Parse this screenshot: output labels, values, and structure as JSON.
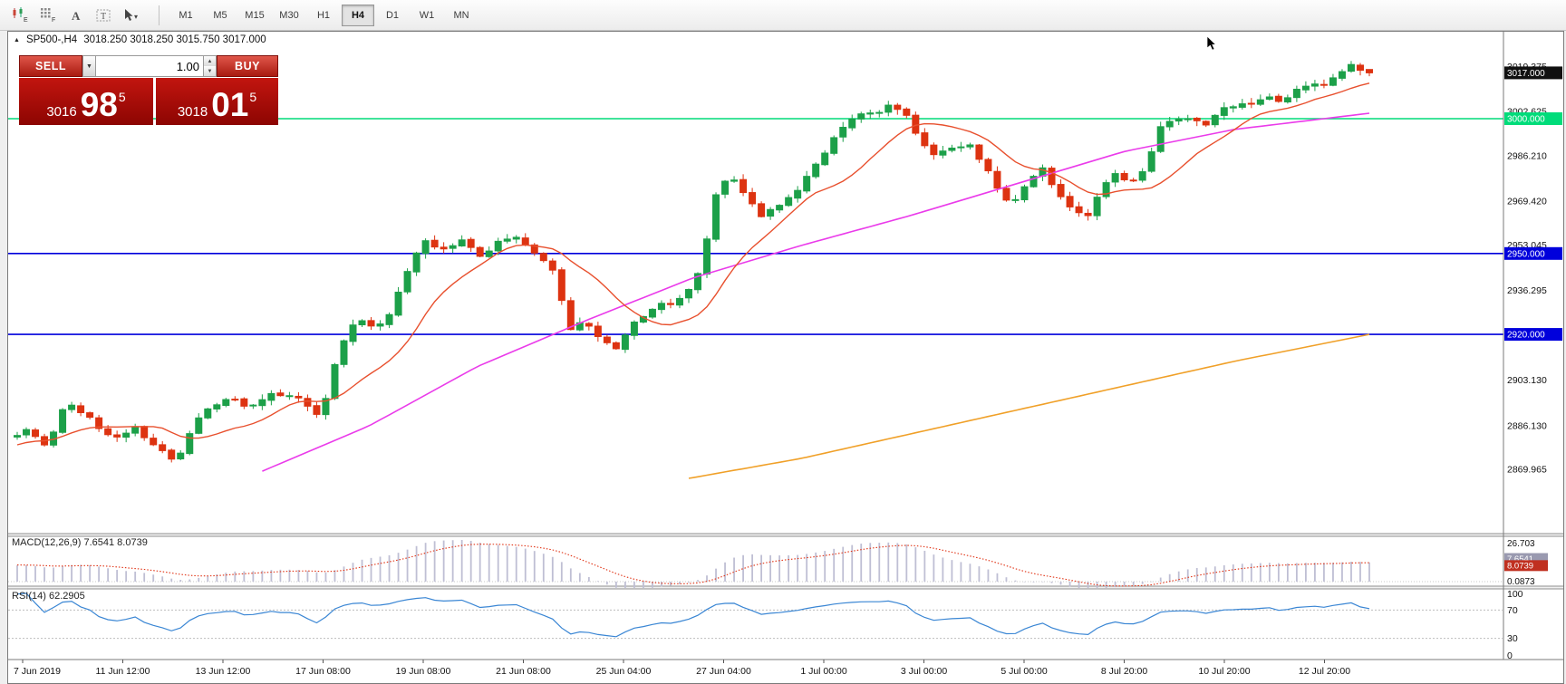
{
  "toolbar": {
    "icons": [
      {
        "name": "chart-type-icon",
        "sub": "E"
      },
      {
        "name": "grid-icon",
        "sub": "F"
      },
      {
        "name": "text-annotation-icon",
        "label": "A"
      },
      {
        "name": "text-box-icon",
        "label": "T"
      },
      {
        "name": "cursor-tool-icon",
        "caret": "▾"
      }
    ],
    "timeframes": [
      {
        "label": "M1"
      },
      {
        "label": "M5"
      },
      {
        "label": "M15"
      },
      {
        "label": "M30"
      },
      {
        "label": "H1"
      },
      {
        "label": "H4",
        "active": true
      },
      {
        "label": "D1"
      },
      {
        "label": "W1"
      },
      {
        "label": "MN"
      }
    ]
  },
  "chart": {
    "title": "SP500-,H4",
    "ohlc": "3018.250 3018.250 3015.750 3017.000",
    "trade_panel": {
      "sell_label": "SELL",
      "buy_label": "BUY",
      "volume": "1.00",
      "sell_price": {
        "prefix": "3016",
        "big": "98",
        "sup": "5"
      },
      "buy_price": {
        "prefix": "3018",
        "big": "01",
        "sup": "5"
      }
    },
    "price_axis": {
      "current": {
        "label": "3017.000",
        "price": 3017.0,
        "bg": "#101010"
      },
      "ticks": [
        {
          "label": "3019.375",
          "price": 3019.375
        },
        {
          "label": "3002.625",
          "price": 3002.625
        },
        {
          "label": "2986.210",
          "price": 2986.21
        },
        {
          "label": "2969.420",
          "price": 2969.42
        },
        {
          "label": "2953.045",
          "price": 2953.045
        },
        {
          "label": "2936.295",
          "price": 2936.295
        },
        {
          "label": "2903.130",
          "price": 2903.13
        },
        {
          "label": "2886.130",
          "price": 2886.13
        },
        {
          "label": "2869.965",
          "price": 2869.965
        }
      ],
      "levels": [
        {
          "label": "3000.000",
          "price": 3000.0,
          "color": "#00DC7A"
        },
        {
          "label": "2950.000",
          "price": 2950.0,
          "color": "#0000DC"
        },
        {
          "label": "2920.000",
          "price": 2920.0,
          "color": "#0000DC"
        }
      ]
    }
  },
  "macd": {
    "label": "MACD(12,26,9) 7.6541 8.0739",
    "axis_max": "26.703",
    "axis_min": "0.0873",
    "value_main": "7.6541",
    "value_signal": "8.0739"
  },
  "rsi": {
    "label": "RSI(14) 62.2905",
    "axis": [
      100,
      70,
      30,
      0
    ],
    "levels": [
      70,
      30
    ],
    "value": 62.2905
  },
  "time_axis": {
    "labels": [
      "7 Jun 2019",
      "11 Jun 12:00",
      "13 Jun 12:00",
      "17 Jun 08:00",
      "19 Jun 08:00",
      "21 Jun 08:00",
      "25 Jun 04:00",
      "27 Jun 04:00",
      "1 Jul 00:00",
      "3 Jul 00:00",
      "5 Jul 00:00",
      "8 Jul 20:00",
      "10 Jul 20:00",
      "12 Jul 20:00"
    ]
  },
  "chart_data": {
    "type": "candlestick",
    "symbol": "SP500-",
    "timeframe": "H4",
    "n_candles": 150,
    "warmup": 40,
    "price_range_estimate": [
      2846,
      3032
    ],
    "last_candle": {
      "open": 3018.25,
      "high": 3018.25,
      "low": 3015.75,
      "close": 3017.0
    },
    "h_levels": [
      3000,
      2950,
      2920
    ],
    "close_anchors": [
      [
        0.0,
        2882
      ],
      [
        0.011,
        2884
      ],
      [
        0.022,
        2878
      ],
      [
        0.037,
        2895
      ],
      [
        0.055,
        2888
      ],
      [
        0.07,
        2882
      ],
      [
        0.088,
        2886
      ],
      [
        0.103,
        2878
      ],
      [
        0.118,
        2872
      ],
      [
        0.136,
        2890
      ],
      [
        0.154,
        2896
      ],
      [
        0.173,
        2893
      ],
      [
        0.191,
        2898
      ],
      [
        0.21,
        2896
      ],
      [
        0.224,
        2889
      ],
      [
        0.232,
        2905
      ],
      [
        0.243,
        2920
      ],
      [
        0.254,
        2926
      ],
      [
        0.265,
        2923
      ],
      [
        0.276,
        2928
      ],
      [
        0.29,
        2945
      ],
      [
        0.301,
        2955
      ],
      [
        0.316,
        2951
      ],
      [
        0.331,
        2955
      ],
      [
        0.345,
        2949
      ],
      [
        0.36,
        2955
      ],
      [
        0.371,
        2956
      ],
      [
        0.382,
        2950
      ],
      [
        0.397,
        2944
      ],
      [
        0.408,
        2922
      ],
      [
        0.419,
        2926
      ],
      [
        0.43,
        2920
      ],
      [
        0.445,
        2916
      ],
      [
        0.456,
        2924
      ],
      [
        0.47,
        2930
      ],
      [
        0.485,
        2932
      ],
      [
        0.5,
        2938
      ],
      [
        0.509,
        2952
      ],
      [
        0.518,
        2975
      ],
      [
        0.529,
        2978
      ],
      [
        0.54,
        2970
      ],
      [
        0.551,
        2963
      ],
      [
        0.562,
        2968
      ],
      [
        0.573,
        2972
      ],
      [
        0.588,
        2982
      ],
      [
        0.599,
        2990
      ],
      [
        0.61,
        2998
      ],
      [
        0.621,
        3002
      ],
      [
        0.634,
        3004
      ],
      [
        0.647,
        3005
      ],
      [
        0.658,
        3001
      ],
      [
        0.669,
        2992
      ],
      [
        0.68,
        2986
      ],
      [
        0.691,
        2990
      ],
      [
        0.702,
        2992
      ],
      [
        0.713,
        2985
      ],
      [
        0.724,
        2976
      ],
      [
        0.735,
        2968
      ],
      [
        0.746,
        2976
      ],
      [
        0.757,
        2983
      ],
      [
        0.768,
        2972
      ],
      [
        0.779,
        2965
      ],
      [
        0.79,
        2963
      ],
      [
        0.801,
        2972
      ],
      [
        0.812,
        2980
      ],
      [
        0.823,
        2974
      ],
      [
        0.834,
        2980
      ],
      [
        0.845,
        2998
      ],
      [
        0.856,
        3002
      ],
      [
        0.867,
        2999
      ],
      [
        0.878,
        2997
      ],
      [
        0.89,
        3004
      ],
      [
        0.9,
        3006
      ],
      [
        0.911,
        3005
      ],
      [
        0.922,
        3008
      ],
      [
        0.933,
        3006
      ],
      [
        0.944,
        3010
      ],
      [
        0.955,
        3012
      ],
      [
        0.966,
        3013
      ],
      [
        0.977,
        3016
      ],
      [
        0.988,
        3019
      ],
      [
        1.0,
        3017
      ]
    ],
    "ma_fast_period": 12,
    "ma_magenta_anchors": [
      [
        0.18,
        2869
      ],
      [
        0.26,
        2886
      ],
      [
        0.34,
        2908
      ],
      [
        0.42,
        2925
      ],
      [
        0.5,
        2941
      ],
      [
        0.58,
        2953
      ],
      [
        0.66,
        2964
      ],
      [
        0.74,
        2976
      ],
      [
        0.82,
        2988
      ],
      [
        0.9,
        2996
      ],
      [
        1.0,
        3002
      ]
    ],
    "ma_orange_anchors": [
      [
        0.49,
        2866
      ],
      [
        0.58,
        2874
      ],
      [
        0.66,
        2883
      ],
      [
        0.74,
        2892
      ],
      [
        0.82,
        2901
      ],
      [
        0.9,
        2910
      ],
      [
        1.0,
        2920
      ]
    ],
    "colors": {
      "up": "#1CA049",
      "down": "#DD3311",
      "ma_fast": "#E8502E",
      "ma_mid": "#EA3BEA",
      "ma_slow": "#F0A028",
      "macd_hist": "#BFBFD4",
      "macd_signal": "#E03214",
      "rsi": "#3A86D4"
    }
  }
}
